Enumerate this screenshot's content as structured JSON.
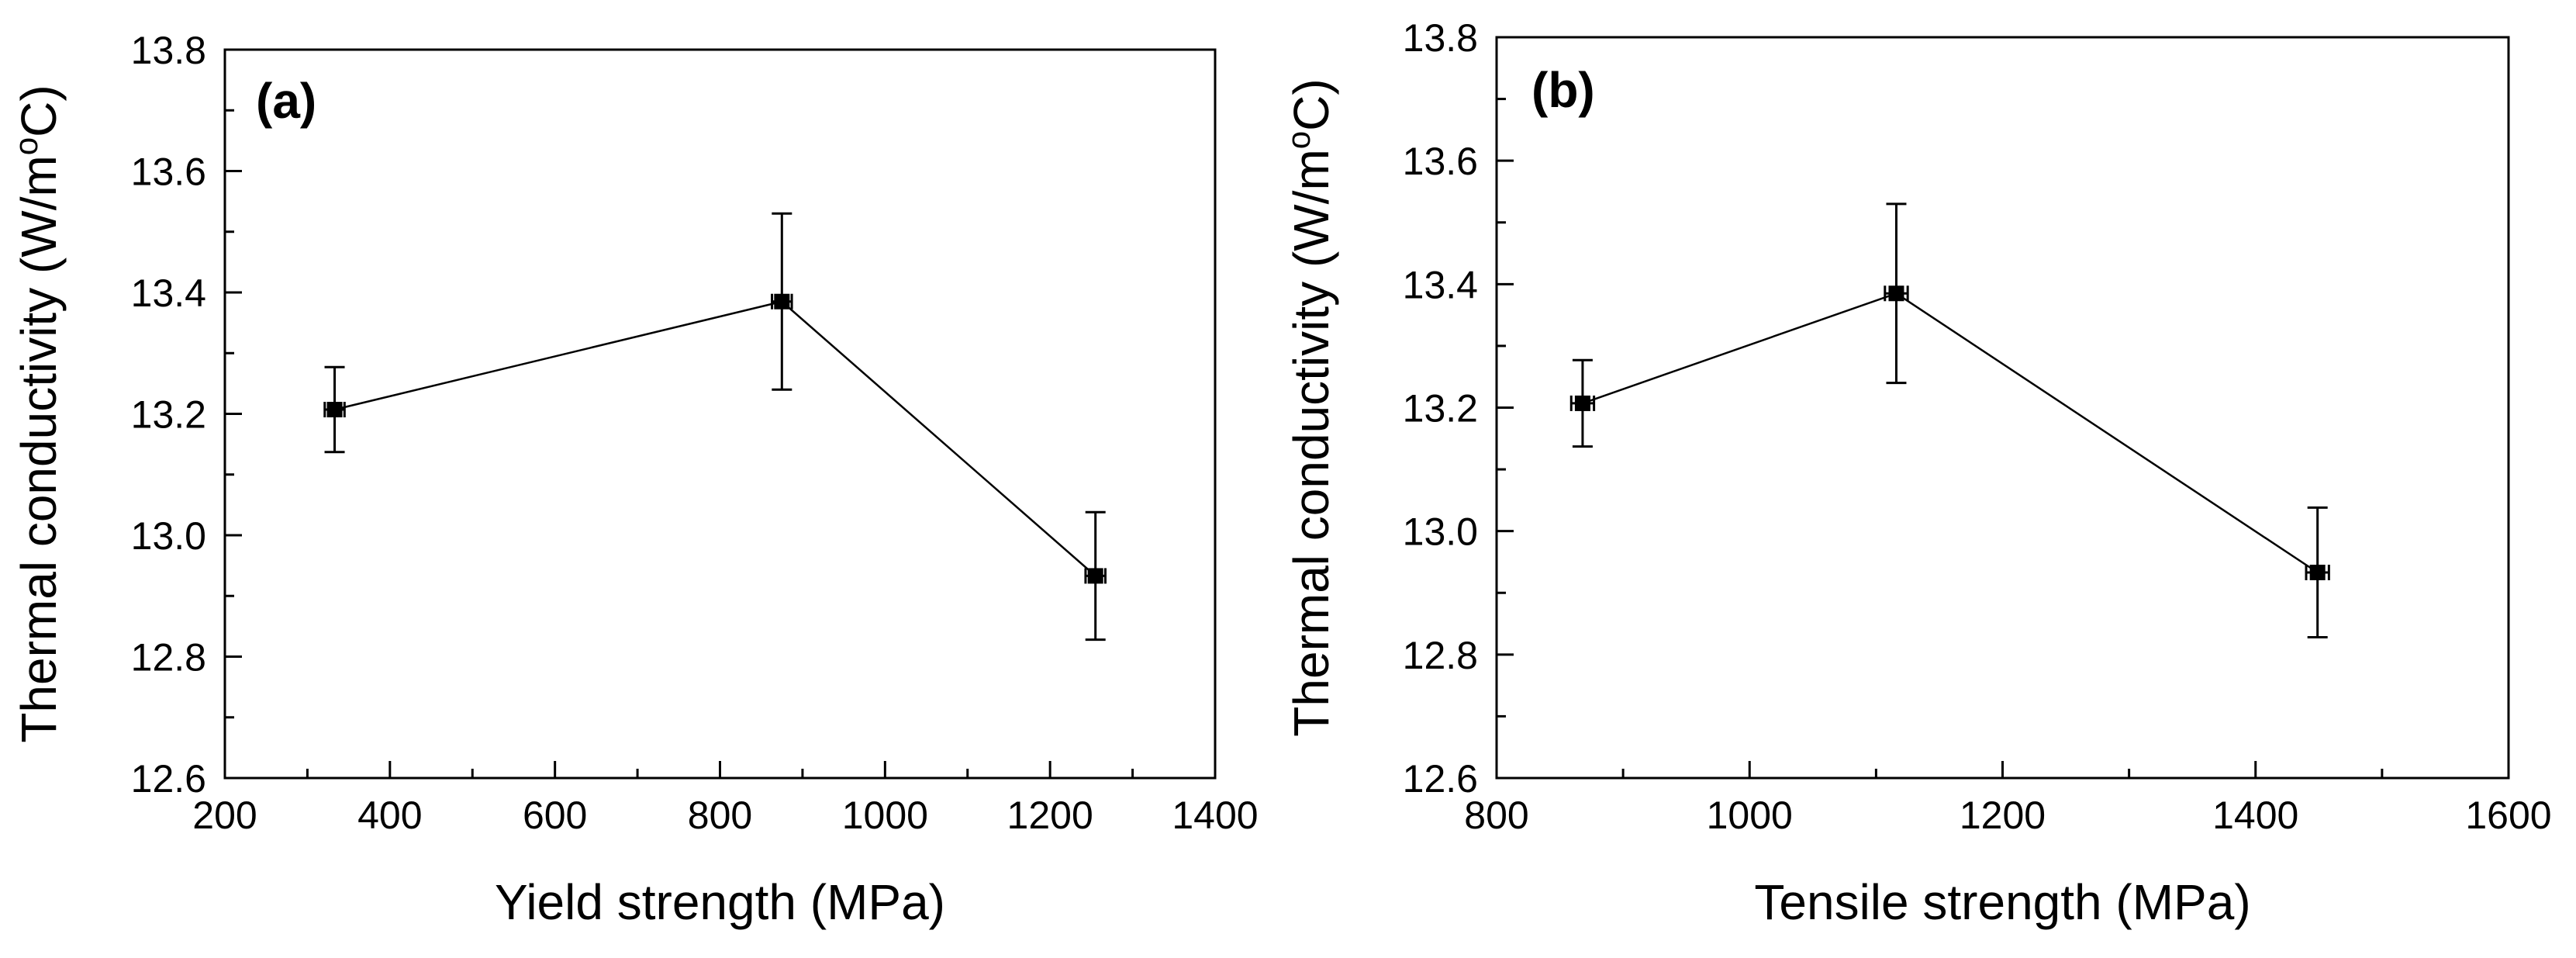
{
  "chart_data": [
    {
      "type": "scatter",
      "panel_label": "(a)",
      "xlabel": "Yield strength (MPa)",
      "ylabel_main": "Thermal conductivity (W/m",
      "ylabel_sup": "o",
      "ylabel_end": "C)",
      "xlim": [
        200,
        1400
      ],
      "ylim": [
        12.6,
        13.8
      ],
      "xticks": [
        200,
        400,
        600,
        800,
        1000,
        1200,
        1400
      ],
      "xtick_labels": [
        "200",
        "400",
        "600",
        "800",
        "1000",
        "1200",
        "1400"
      ],
      "yticks": [
        12.6,
        12.8,
        13.0,
        13.2,
        13.4,
        13.6,
        13.8
      ],
      "ytick_labels": [
        "12.6",
        "12.8",
        "13.0",
        "13.2",
        "13.4",
        "13.6",
        "13.8"
      ],
      "line": true,
      "points": [
        {
          "x": 333,
          "y": 13.207,
          "yerr": 0.07,
          "xerr": 12
        },
        {
          "x": 875,
          "y": 13.385,
          "yerr": 0.145,
          "xerr": 12
        },
        {
          "x": 1255,
          "y": 12.933,
          "yerr": 0.105,
          "xerr": 12
        }
      ]
    },
    {
      "type": "scatter",
      "panel_label": "(b)",
      "xlabel": "Tensile strength (MPa)",
      "ylabel_main": "Thermal conductivity (W/m",
      "ylabel_sup": "o",
      "ylabel_end": "C)",
      "xlim": [
        800,
        1600
      ],
      "ylim": [
        12.6,
        13.8
      ],
      "xticks": [
        800,
        1000,
        1200,
        1400,
        1600
      ],
      "xtick_labels": [
        "800",
        "1000",
        "1200",
        "1400",
        "1600"
      ],
      "yticks": [
        12.6,
        12.8,
        13.0,
        13.2,
        13.4,
        13.6,
        13.8
      ],
      "ytick_labels": [
        "12.6",
        "12.8",
        "13.0",
        "13.2",
        "13.4",
        "13.6",
        "13.8"
      ],
      "line": true,
      "points": [
        {
          "x": 868,
          "y": 13.207,
          "yerr": 0.07,
          "xerr": 9
        },
        {
          "x": 1116,
          "y": 13.385,
          "yerr": 0.145,
          "xerr": 9
        },
        {
          "x": 1449,
          "y": 12.933,
          "yerr": 0.105,
          "xerr": 9
        }
      ]
    }
  ]
}
